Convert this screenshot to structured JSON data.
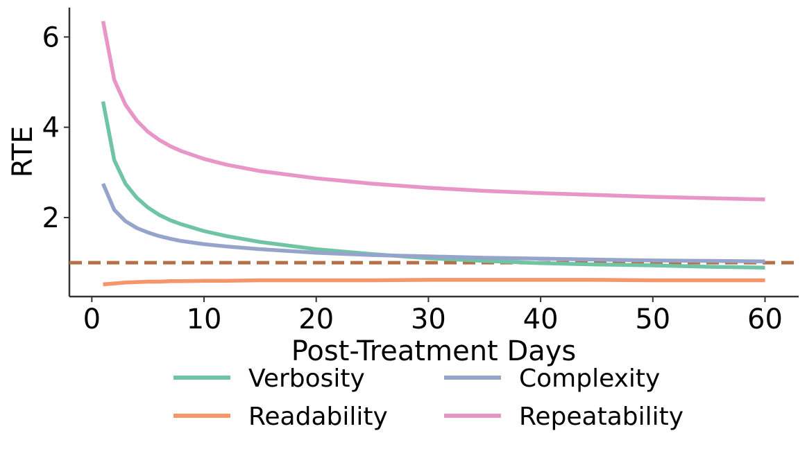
{
  "chart_data": {
    "type": "line",
    "title": "",
    "xlabel": "Post-Treatment Days",
    "ylabel": "RTE",
    "xlim": [
      -2,
      63
    ],
    "ylim": [
      0.25,
      6.65
    ],
    "xticks": [
      0,
      10,
      20,
      30,
      40,
      50,
      60
    ],
    "yticks": [
      2,
      4,
      6
    ],
    "grid": false,
    "legend_position": "bottom-center",
    "reference_line": {
      "y": 1.0,
      "style": "dashed",
      "color": "#b5704a"
    },
    "x": [
      1,
      2,
      3,
      4,
      5,
      6,
      7,
      8,
      10,
      12,
      15,
      20,
      25,
      30,
      35,
      40,
      45,
      50,
      55,
      60
    ],
    "series": [
      {
        "name": "Verbosity",
        "color": "#6fc4a4",
        "values": [
          4.57,
          3.27,
          2.75,
          2.44,
          2.22,
          2.06,
          1.94,
          1.85,
          1.7,
          1.59,
          1.46,
          1.3,
          1.19,
          1.1,
          1.04,
          0.99,
          0.96,
          0.94,
          0.91,
          0.89
        ]
      },
      {
        "name": "Complexity",
        "color": "#96a4cc",
        "values": [
          2.75,
          2.17,
          1.92,
          1.77,
          1.67,
          1.59,
          1.53,
          1.48,
          1.41,
          1.36,
          1.3,
          1.22,
          1.17,
          1.14,
          1.11,
          1.09,
          1.07,
          1.05,
          1.04,
          1.03
        ]
      },
      {
        "name": "Readability",
        "color": "#f4956a",
        "values": [
          0.52,
          0.54,
          0.56,
          0.57,
          0.58,
          0.58,
          0.59,
          0.59,
          0.6,
          0.6,
          0.61,
          0.61,
          0.61,
          0.62,
          0.62,
          0.62,
          0.62,
          0.61,
          0.61,
          0.61
        ]
      },
      {
        "name": "Repeatability",
        "color": "#e895c8",
        "values": [
          6.35,
          5.05,
          4.5,
          4.15,
          3.9,
          3.72,
          3.58,
          3.47,
          3.3,
          3.17,
          3.03,
          2.87,
          2.75,
          2.66,
          2.59,
          2.54,
          2.5,
          2.46,
          2.43,
          2.4
        ]
      }
    ]
  }
}
